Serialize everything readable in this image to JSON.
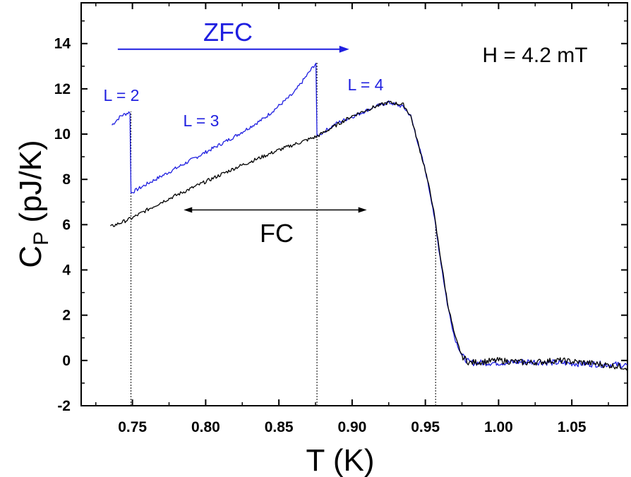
{
  "chart_data": {
    "type": "line",
    "title": "",
    "xlabel": "T (K)",
    "ylabel": {
      "main": "C",
      "sub": "P",
      "rest": " (pJ/K)"
    },
    "xlim": [
      0.715,
      1.088
    ],
    "ylim": [
      -2,
      15.8
    ],
    "x_ticks": [
      0.75,
      0.8,
      0.85,
      0.9,
      0.95,
      1.0,
      1.05
    ],
    "x_tick_labels": [
      "0.75",
      "0.80",
      "0.85",
      "0.90",
      "0.95",
      "1.00",
      "1.05"
    ],
    "y_ticks": [
      -2,
      0,
      2,
      4,
      6,
      8,
      10,
      12,
      14
    ],
    "y_tick_labels": [
      "-2",
      "0",
      "2",
      "4",
      "6",
      "8",
      "10",
      "12",
      "14"
    ],
    "grid": false,
    "legend": null,
    "colors": {
      "zfc": "#1f1fe0",
      "fc": "#000000"
    },
    "series": [
      {
        "name": "ZFC",
        "color": "#1f1fe0",
        "points": [
          [
            0.736,
            10.4
          ],
          [
            0.742,
            10.8
          ],
          [
            0.749,
            11.0
          ],
          [
            0.749,
            7.4
          ],
          [
            0.76,
            7.8
          ],
          [
            0.78,
            8.5
          ],
          [
            0.8,
            9.2
          ],
          [
            0.82,
            9.9
          ],
          [
            0.84,
            10.7
          ],
          [
            0.86,
            11.8
          ],
          [
            0.876,
            13.2
          ],
          [
            0.876,
            9.9
          ],
          [
            0.89,
            10.5
          ],
          [
            0.905,
            10.9
          ],
          [
            0.915,
            11.2
          ],
          [
            0.925,
            11.4
          ],
          [
            0.935,
            11.2
          ],
          [
            0.94,
            10.8
          ],
          [
            0.945,
            9.6
          ],
          [
            0.95,
            8.4
          ],
          [
            0.955,
            6.8
          ],
          [
            0.96,
            4.6
          ],
          [
            0.965,
            2.5
          ],
          [
            0.97,
            1.0
          ],
          [
            0.975,
            0.2
          ],
          [
            0.98,
            -0.1
          ],
          [
            1.0,
            -0.1
          ],
          [
            1.02,
            -0.05
          ],
          [
            1.04,
            -0.1
          ],
          [
            1.06,
            -0.15
          ],
          [
            1.088,
            -0.2
          ]
        ]
      },
      {
        "name": "FC",
        "color": "#000000",
        "points": [
          [
            0.735,
            5.9
          ],
          [
            0.75,
            6.3
          ],
          [
            0.77,
            7.0
          ],
          [
            0.8,
            7.9
          ],
          [
            0.82,
            8.5
          ],
          [
            0.85,
            9.3
          ],
          [
            0.876,
            9.9
          ],
          [
            0.9,
            10.8
          ],
          [
            0.915,
            11.2
          ],
          [
            0.925,
            11.4
          ],
          [
            0.935,
            11.3
          ],
          [
            0.94,
            10.8
          ],
          [
            0.945,
            9.6
          ],
          [
            0.95,
            8.4
          ],
          [
            0.955,
            6.9
          ],
          [
            0.96,
            4.7
          ],
          [
            0.965,
            2.6
          ],
          [
            0.97,
            1.1
          ],
          [
            0.975,
            0.2
          ],
          [
            0.98,
            -0.1
          ],
          [
            1.0,
            0.0
          ],
          [
            1.02,
            -0.1
          ],
          [
            1.04,
            0.0
          ],
          [
            1.06,
            -0.1
          ],
          [
            1.088,
            -0.3
          ]
        ]
      }
    ],
    "guide_lines_x": [
      0.749,
      0.876,
      0.957
    ],
    "annotations": {
      "zfc_label": "ZFC",
      "fc_label": "FC",
      "field_label": "H = 4.2 mT",
      "l2": "L = 2",
      "l3": "L = 3",
      "l4": "L = 4"
    },
    "arrows": {
      "zfc": {
        "x_from": 0.74,
        "x_to": 0.898,
        "y": 13.75
      },
      "fc": {
        "x_from": 0.785,
        "x_to": 0.91,
        "y": 6.65
      }
    }
  }
}
